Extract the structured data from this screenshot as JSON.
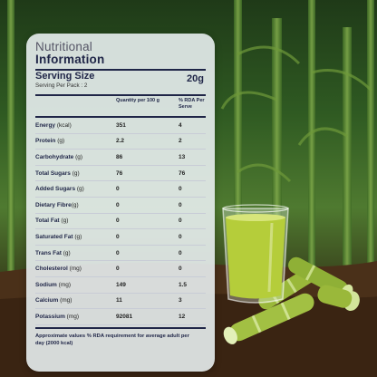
{
  "card": {
    "title_line1": "Nutritional",
    "title_line2": "Information",
    "serving_size_label": "Serving Size",
    "serving_size_value": "20g",
    "serving_per_pack": "Serving Per Pack : 2",
    "col_qty": "Quantity per 100 g",
    "col_rda": "% RDA Per Serve",
    "rows": [
      {
        "name": "Energy",
        "unit": " (kcal)",
        "qty": "351",
        "rda": "4"
      },
      {
        "name": "Protein",
        "unit": " (g)",
        "qty": "2.2",
        "rda": "2"
      },
      {
        "name": "Carbohydrate",
        "unit": " (g)",
        "qty": "86",
        "rda": "13"
      },
      {
        "name": "Total Sugars",
        "unit": " (g)",
        "qty": "76",
        "rda": "76"
      },
      {
        "name": "Added Sugars",
        "unit": " (g)",
        "qty": "0",
        "rda": "0"
      },
      {
        "name": "Dietary Fibre",
        "unit": "(g)",
        "qty": "0",
        "rda": "0"
      },
      {
        "name": "Total Fat",
        "unit": " (g)",
        "qty": "0",
        "rda": "0"
      },
      {
        "name": "Saturated Fat",
        "unit": " (g)",
        "qty": "0",
        "rda": "0"
      },
      {
        "name": "Trans Fat",
        "unit": " (g)",
        "qty": "0",
        "rda": "0"
      },
      {
        "name": "Cholesterol",
        "unit": " (mg)",
        "qty": "0",
        "rda": "0"
      },
      {
        "name": "Sodium",
        "unit": " (mg)",
        "qty": "149",
        "rda": "1.5"
      },
      {
        "name": "Calcium",
        "unit": " (mg)",
        "qty": "11",
        "rda": "3"
      },
      {
        "name": "Potassium",
        "unit": " (mg)",
        "qty": "92081",
        "rda": "12"
      }
    ],
    "note": "Approximate values % RDA requirement for average adult per day (2000 kcal)"
  },
  "colors": {
    "accent": "#1f2547",
    "juice": "#b5cd3a",
    "cane": "#9ab83a",
    "soil": "#4a3019"
  }
}
